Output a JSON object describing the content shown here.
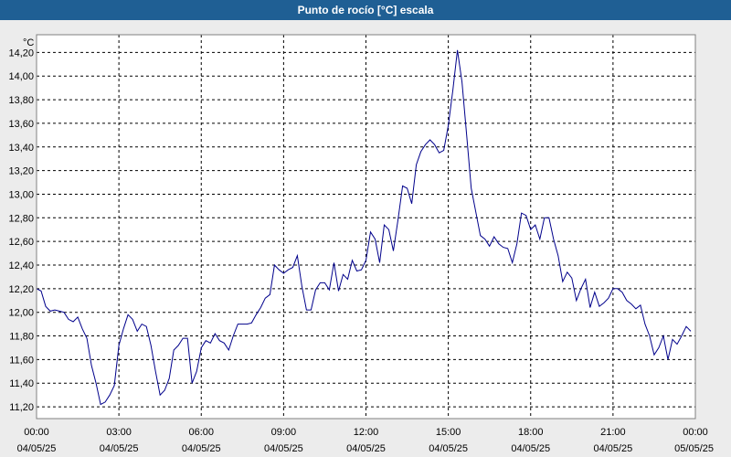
{
  "chart_data": {
    "type": "line",
    "title": "Punto de rocío [°C] escala",
    "ylabel": "°C",
    "ylim": [
      11.1,
      14.35
    ],
    "ytick_values": [
      11.2,
      11.4,
      11.6,
      11.8,
      12.0,
      12.2,
      12.4,
      12.6,
      12.8,
      13.0,
      13.2,
      13.4,
      13.6,
      13.8,
      14.0,
      14.2
    ],
    "ytick_labels": [
      "11,20",
      "11,40",
      "11,60",
      "11,80",
      "12,00",
      "12,20",
      "12,40",
      "12,60",
      "12,80",
      "13,00",
      "13,20",
      "13,40",
      "13,60",
      "13,80",
      "14,00",
      "14,20"
    ],
    "xlim": [
      "2025-05-04 00:00",
      "2025-05-05 00:00"
    ],
    "xticks": [
      {
        "time": "00:00",
        "date": "04/05/25"
      },
      {
        "time": "03:00",
        "date": "04/05/25"
      },
      {
        "time": "06:00",
        "date": "04/05/25"
      },
      {
        "time": "09:00",
        "date": "04/05/25"
      },
      {
        "time": "12:00",
        "date": "04/05/25"
      },
      {
        "time": "15:00",
        "date": "04/05/25"
      },
      {
        "time": "18:00",
        "date": "04/05/25"
      },
      {
        "time": "21:00",
        "date": "04/05/25"
      },
      {
        "time": "00:00",
        "date": "05/05/25"
      }
    ],
    "grid": true,
    "line_color": "#00008B",
    "series": [
      {
        "x": [
          "00:00",
          "00:10",
          "00:20",
          "00:30",
          "00:40",
          "00:50",
          "01:00",
          "01:10",
          "01:20",
          "01:30",
          "01:40",
          "01:50",
          "02:00",
          "02:10",
          "02:20",
          "02:30",
          "02:40",
          "02:50",
          "03:00",
          "03:10",
          "03:20",
          "03:30",
          "03:40",
          "03:50",
          "04:00",
          "04:10",
          "04:20",
          "04:30",
          "04:40",
          "04:50",
          "05:00",
          "05:10",
          "05:20",
          "05:30",
          "05:40",
          "05:50",
          "06:00",
          "06:10",
          "06:20",
          "06:30",
          "06:40",
          "06:50",
          "07:00",
          "07:10",
          "07:20",
          "07:30",
          "07:40",
          "07:50",
          "08:00",
          "08:10",
          "08:20",
          "08:30",
          "08:40",
          "08:50",
          "09:00",
          "09:10",
          "09:20",
          "09:30",
          "09:40",
          "09:50",
          "10:00",
          "10:10",
          "10:20",
          "10:30",
          "10:40",
          "10:50",
          "11:00",
          "11:10",
          "11:20",
          "11:30",
          "11:40",
          "11:50",
          "12:00",
          "12:10",
          "12:20",
          "12:30",
          "12:40",
          "12:50",
          "13:00",
          "13:10",
          "13:20",
          "13:30",
          "13:40",
          "13:50",
          "14:00",
          "14:10",
          "14:20",
          "14:30",
          "14:40",
          "14:50",
          "15:00",
          "15:10",
          "15:20",
          "15:30",
          "15:40",
          "15:50",
          "16:00",
          "16:10",
          "16:20",
          "16:30",
          "16:40",
          "16:50",
          "17:00",
          "17:10",
          "17:20",
          "17:30",
          "17:40",
          "17:50",
          "18:00",
          "18:10",
          "18:20",
          "18:30",
          "18:40",
          "18:50",
          "19:00",
          "19:10",
          "19:20",
          "19:30",
          "19:40",
          "19:50",
          "20:00",
          "20:10",
          "20:20",
          "20:30",
          "20:40",
          "20:50",
          "21:00",
          "21:10",
          "21:20",
          "21:30",
          "21:40",
          "21:50",
          "22:00",
          "22:10",
          "22:20",
          "22:30",
          "22:40",
          "22:50",
          "23:00",
          "23:10",
          "23:20",
          "23:30",
          "23:40",
          "23:50"
        ],
        "values": [
          12.2,
          12.18,
          12.05,
          12.01,
          12.02,
          12.01,
          12.0,
          11.94,
          11.92,
          11.96,
          11.86,
          11.78,
          11.55,
          11.4,
          11.22,
          11.24,
          11.3,
          11.38,
          11.72,
          11.86,
          11.98,
          11.94,
          11.84,
          11.9,
          11.88,
          11.72,
          11.5,
          11.3,
          11.34,
          11.44,
          11.68,
          11.72,
          11.78,
          11.78,
          11.4,
          11.5,
          11.7,
          11.76,
          11.74,
          11.82,
          11.76,
          11.74,
          11.68,
          11.8,
          11.9,
          11.9,
          11.9,
          11.91,
          11.98,
          12.04,
          12.12,
          12.15,
          12.4,
          12.36,
          12.33,
          12.36,
          12.38,
          12.48,
          12.22,
          12.02,
          12.02,
          12.19,
          12.25,
          12.25,
          12.19,
          12.42,
          12.18,
          12.32,
          12.28,
          12.44,
          12.35,
          12.36,
          12.44,
          12.68,
          12.62,
          12.42,
          12.74,
          12.7,
          12.52,
          12.78,
          13.07,
          13.05,
          12.92,
          13.25,
          13.36,
          13.42,
          13.46,
          13.42,
          13.35,
          13.37,
          13.58,
          13.88,
          14.22,
          13.95,
          13.5,
          13.05,
          12.85,
          12.65,
          12.62,
          12.56,
          12.64,
          12.58,
          12.55,
          12.54,
          12.42,
          12.58,
          12.84,
          12.82,
          12.7,
          12.74,
          12.62,
          12.8,
          12.8,
          12.62,
          12.48,
          12.26,
          12.34,
          12.29,
          12.1,
          12.2,
          12.28,
          12.04,
          12.17,
          12.05,
          12.08,
          12.12,
          12.2,
          12.2,
          12.17,
          12.1,
          12.07,
          12.03,
          12.06,
          11.9,
          11.8,
          11.64,
          11.7,
          11.8,
          11.6,
          11.77,
          11.73,
          11.8,
          11.88,
          11.84
        ]
      }
    ]
  }
}
